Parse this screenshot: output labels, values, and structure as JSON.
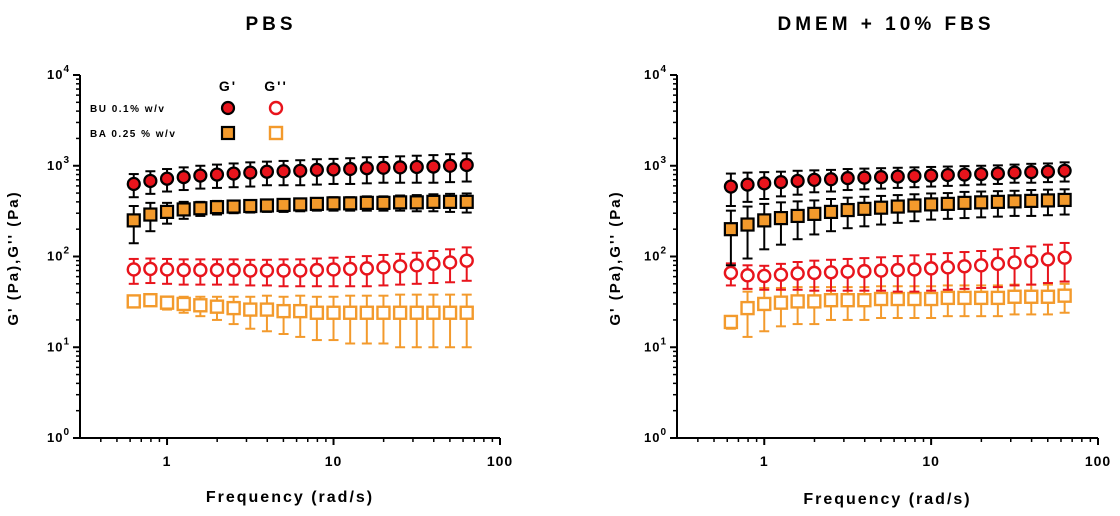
{
  "colors": {
    "red": "#e8141c",
    "orange": "#f39a2c",
    "black": "#000000"
  },
  "legend": {
    "g_prime_header": "G'",
    "g_double_prime_header": "G''",
    "entries": [
      {
        "label": "BU 0.1% w/v"
      },
      {
        "label": "BA 0.25 % w/v"
      }
    ]
  },
  "chart_data": [
    {
      "type": "scatter",
      "title": "PBS",
      "xlabel": "Frequency (rad/s)",
      "ylabel": "G' (Pa),G'' (Pa)",
      "xscale": "log",
      "yscale": "log",
      "xlim": [
        0.3,
        100
      ],
      "ylim": [
        1,
        10000
      ],
      "xticks": [
        1,
        10,
        100
      ],
      "xtick_labels": [
        "1",
        "10",
        "100"
      ],
      "yticks": [
        1,
        10,
        100,
        1000,
        10000
      ],
      "ytick_labels": [
        [
          "10",
          "0"
        ],
        [
          "10",
          "1"
        ],
        [
          "10",
          "2"
        ],
        [
          "10",
          "3"
        ],
        [
          "10",
          "4"
        ]
      ],
      "grid": false,
      "legend_position": "top-left",
      "x": [
        0.631,
        0.794,
        1.0,
        1.259,
        1.585,
        1.995,
        2.512,
        3.162,
        3.981,
        5.012,
        6.31,
        7.943,
        10.0,
        12.59,
        15.85,
        19.95,
        25.12,
        31.62,
        39.81,
        50.12,
        63.1
      ],
      "series": [
        {
          "name": "BU 0.1% w/v",
          "modulus": "G'",
          "marker": "circle",
          "fill": "#e8141c",
          "values": [
            630,
            680,
            720,
            750,
            780,
            800,
            820,
            840,
            860,
            870,
            880,
            900,
            910,
            920,
            940,
            950,
            960,
            970,
            980,
            1000,
            1020
          ],
          "errors": [
            180,
            190,
            200,
            210,
            220,
            230,
            240,
            250,
            250,
            260,
            270,
            280,
            280,
            290,
            300,
            300,
            310,
            320,
            330,
            340,
            350
          ]
        },
        {
          "name": "BA 0.25 % w/v",
          "modulus": "G'",
          "marker": "square",
          "fill": "#f39a2c",
          "values": [
            250,
            290,
            310,
            330,
            340,
            350,
            355,
            360,
            365,
            370,
            375,
            380,
            385,
            385,
            390,
            390,
            395,
            395,
            400,
            400,
            400
          ],
          "errors": [
            110,
            100,
            80,
            70,
            60,
            60,
            55,
            55,
            55,
            60,
            60,
            60,
            65,
            65,
            70,
            70,
            75,
            80,
            85,
            90,
            95
          ]
        },
        {
          "name": "BU 0.1% w/v",
          "modulus": "G''",
          "marker": "circle-open",
          "stroke": "#e8141c",
          "values": [
            72,
            73,
            72,
            71,
            71,
            71,
            71,
            70,
            70,
            70,
            70,
            71,
            72,
            73,
            74,
            76,
            78,
            80,
            83,
            86,
            90
          ],
          "errors": [
            22,
            22,
            22,
            22,
            22,
            22,
            22,
            22,
            22,
            23,
            23,
            24,
            25,
            26,
            27,
            28,
            29,
            30,
            32,
            34,
            36
          ]
        },
        {
          "name": "BA 0.25 % w/v",
          "modulus": "G''",
          "marker": "square-open",
          "stroke": "#f39a2c",
          "values": [
            32,
            33,
            31,
            30,
            29,
            28,
            27,
            26,
            26,
            25,
            25,
            24,
            24,
            24,
            24,
            24,
            24,
            24,
            24,
            24,
            24
          ],
          "errors": [
            3,
            4,
            5,
            6,
            7,
            8,
            9,
            10,
            11,
            11,
            12,
            12,
            12,
            13,
            13,
            13,
            14,
            14,
            14,
            14,
            14
          ]
        }
      ]
    },
    {
      "type": "scatter",
      "title": "DMEM + 10% FBS",
      "xlabel": "Frequency (rad/s)",
      "ylabel": "G' (Pa),G'' (Pa)",
      "xscale": "log",
      "yscale": "log",
      "xlim": [
        0.3,
        100
      ],
      "ylim": [
        1,
        10000
      ],
      "xticks": [
        1,
        10,
        100
      ],
      "xtick_labels": [
        "1",
        "10",
        "100"
      ],
      "yticks": [
        1,
        10,
        100,
        1000,
        10000
      ],
      "ytick_labels": [
        [
          "10",
          "0"
        ],
        [
          "10",
          "1"
        ],
        [
          "10",
          "2"
        ],
        [
          "10",
          "3"
        ],
        [
          "10",
          "4"
        ]
      ],
      "grid": false,
      "x": [
        0.631,
        0.794,
        1.0,
        1.259,
        1.585,
        1.995,
        2.512,
        3.162,
        3.981,
        5.012,
        6.31,
        7.943,
        10.0,
        12.59,
        15.85,
        19.95,
        25.12,
        31.62,
        39.81,
        50.12,
        63.1
      ],
      "series": [
        {
          "name": "BU 0.1% w/v",
          "modulus": "G'",
          "marker": "circle",
          "fill": "#e8141c",
          "values": [
            590,
            620,
            640,
            660,
            680,
            700,
            710,
            730,
            740,
            750,
            760,
            770,
            780,
            790,
            800,
            810,
            820,
            840,
            850,
            860,
            880
          ],
          "errors": [
            230,
            220,
            210,
            200,
            200,
            190,
            190,
            190,
            190,
            190,
            190,
            190,
            190,
            190,
            190,
            190,
            190,
            190,
            200,
            200,
            210
          ]
        },
        {
          "name": "BA 0.25 % w/v",
          "modulus": "G'",
          "marker": "square",
          "fill": "#f39a2c",
          "values": [
            200,
            225,
            250,
            265,
            280,
            295,
            310,
            325,
            335,
            345,
            355,
            365,
            375,
            380,
            390,
            395,
            400,
            405,
            410,
            415,
            420
          ],
          "errors": [
            120,
            130,
            130,
            130,
            125,
            120,
            120,
            120,
            120,
            120,
            120,
            120,
            120,
            120,
            125,
            125,
            125,
            125,
            130,
            130,
            130
          ]
        },
        {
          "name": "BU 0.1% w/v",
          "modulus": "G''",
          "marker": "circle-open",
          "stroke": "#e8141c",
          "values": [
            66,
            62,
            61,
            63,
            65,
            66,
            67,
            68,
            69,
            70,
            71,
            72,
            74,
            76,
            78,
            80,
            83,
            86,
            89,
            93,
            97
          ],
          "errors": [
            18,
            18,
            18,
            20,
            22,
            24,
            25,
            26,
            27,
            28,
            30,
            31,
            32,
            33,
            34,
            35,
            37,
            38,
            40,
            42,
            44
          ]
        },
        {
          "name": "BA 0.25 % w/v",
          "modulus": "G''",
          "marker": "square-open",
          "stroke": "#f39a2c",
          "values": [
            19,
            27,
            30,
            31,
            32,
            32,
            33,
            33,
            33,
            34,
            34,
            34,
            34,
            35,
            35,
            35,
            35,
            36,
            36,
            36,
            37
          ],
          "errors": [
            3,
            14,
            15,
            14,
            14,
            14,
            13,
            13,
            13,
            13,
            13,
            13,
            13,
            13,
            13,
            13,
            13,
            13,
            13,
            13,
            13
          ]
        }
      ]
    }
  ]
}
